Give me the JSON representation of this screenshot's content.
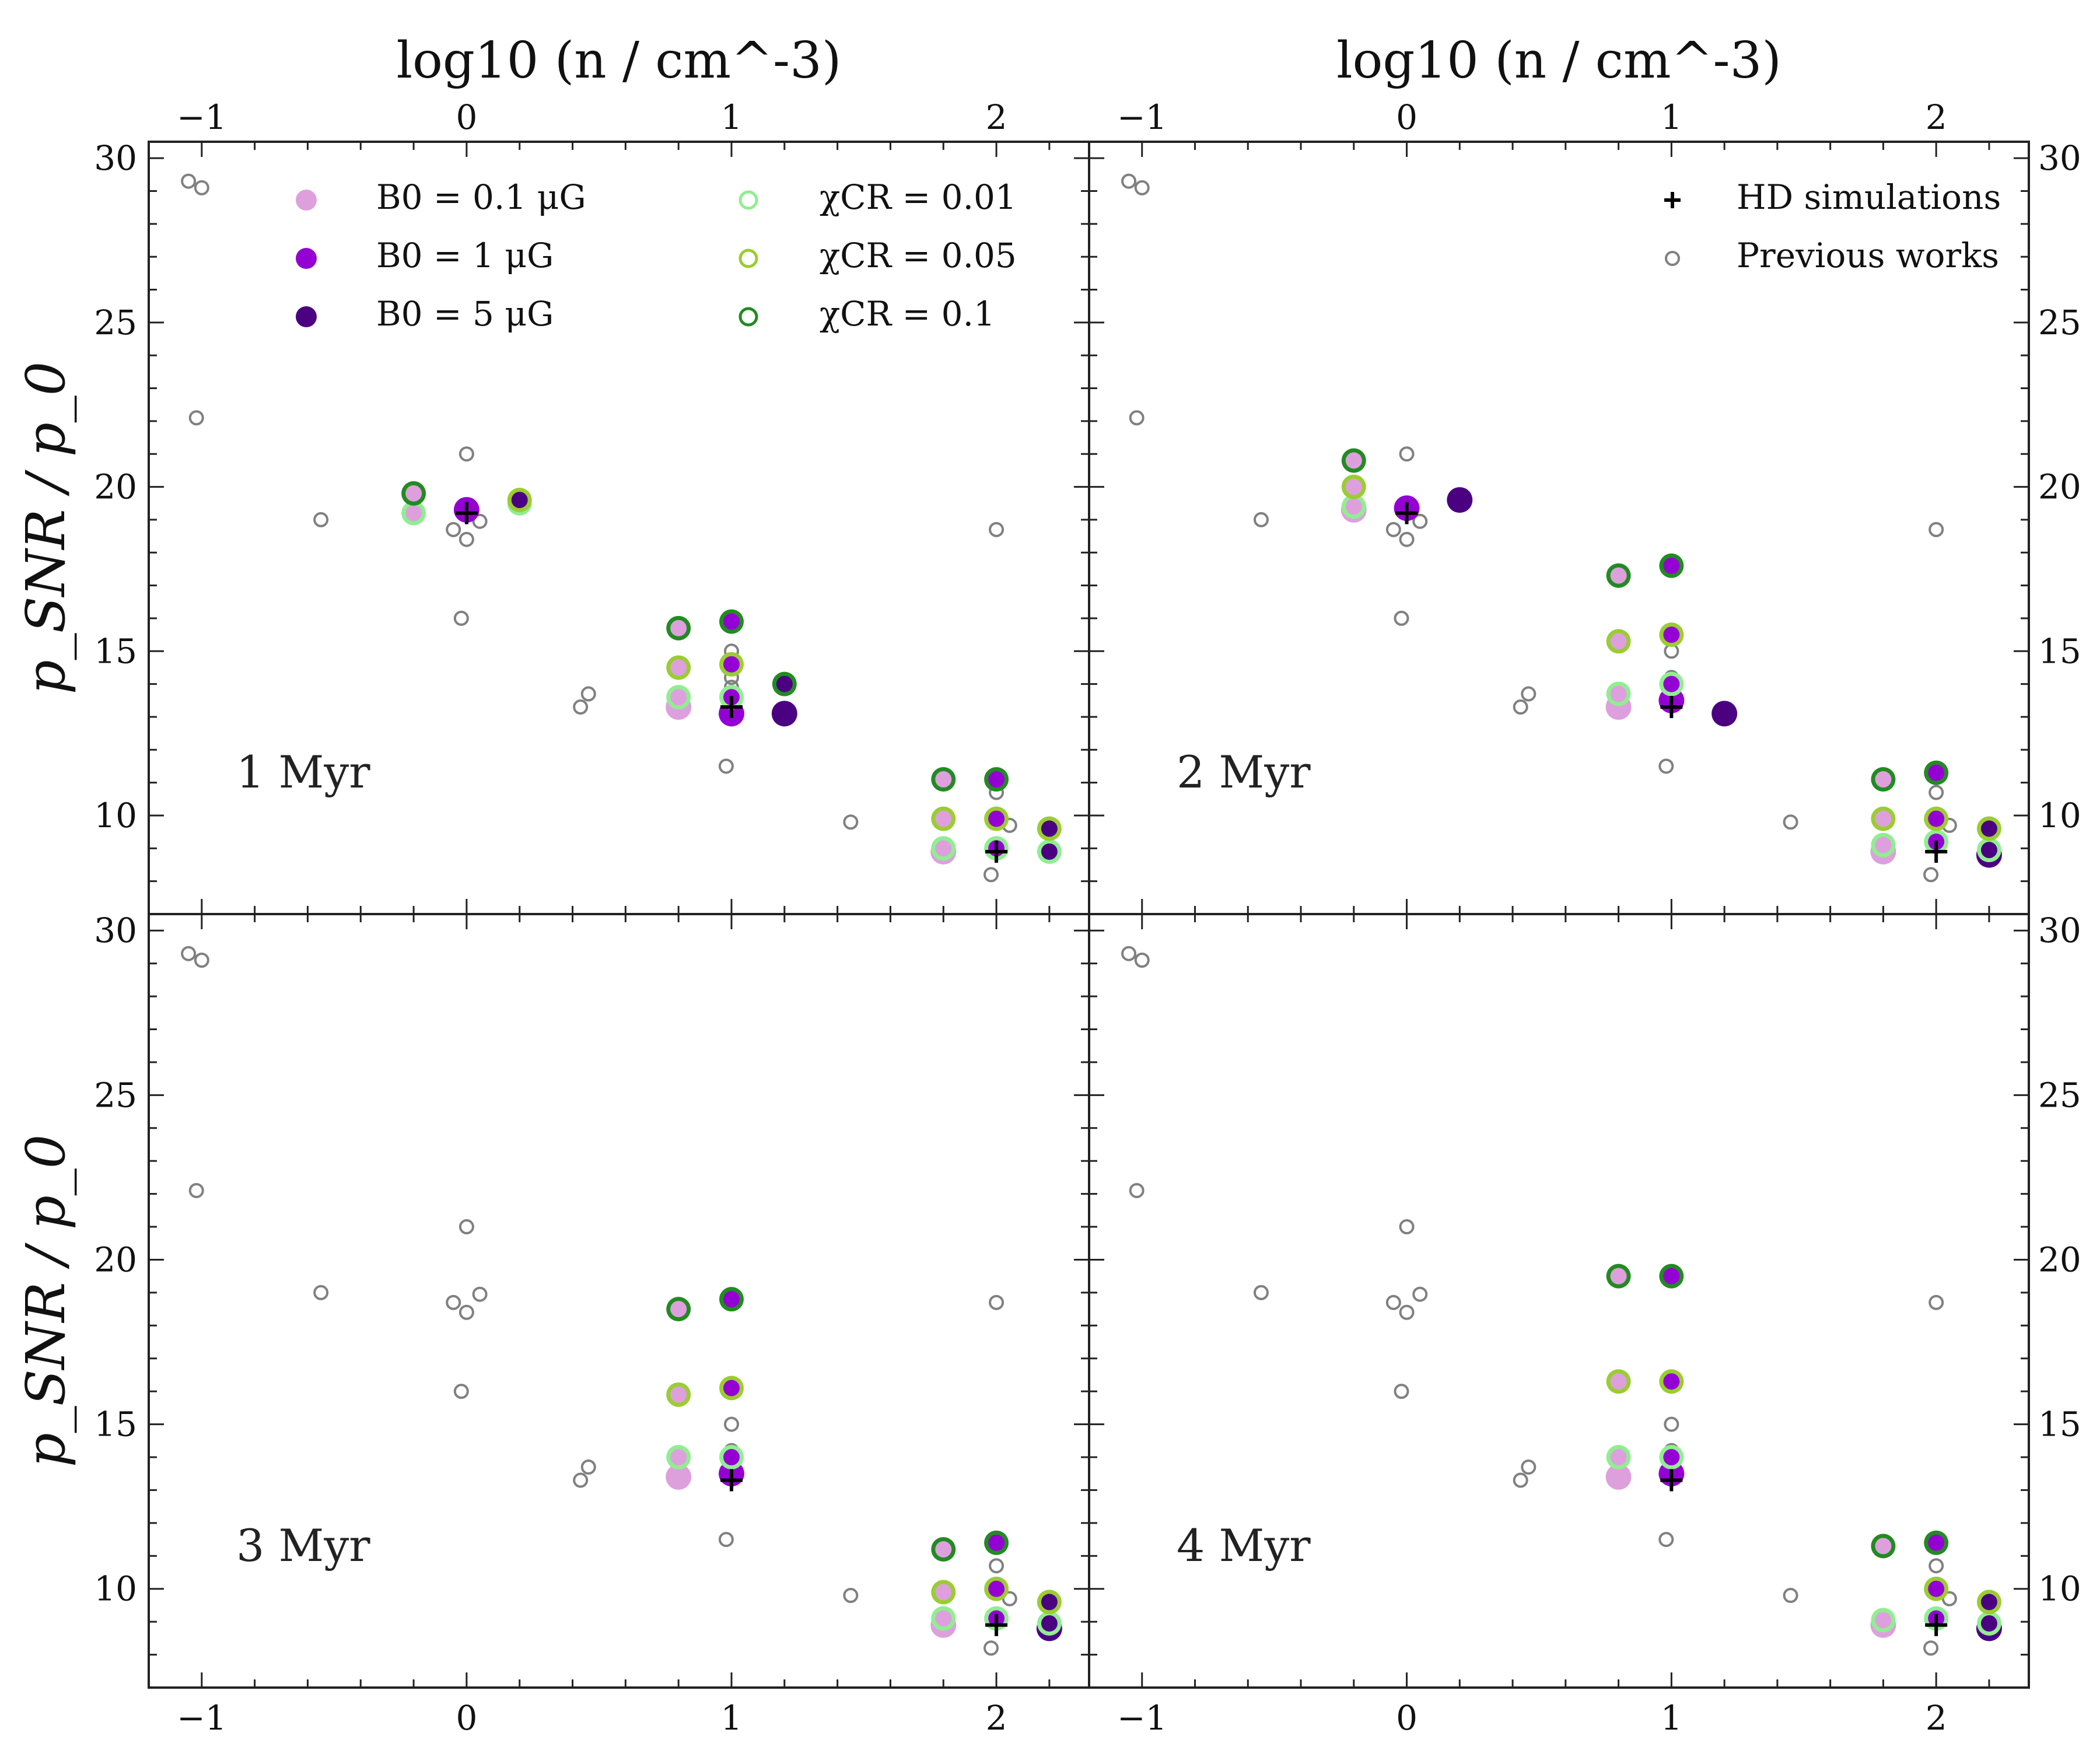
{
  "chart_data": {
    "type": "scatter",
    "layout": "2x2 grid of panels sharing axes",
    "top_axis_label": "log10 (n / cm^-3)",
    "y_axis_label": "p_SNR / p_0",
    "xlim": [
      -1.2,
      2.35
    ],
    "ylim": [
      7,
      30.5
    ],
    "x_ticks": [
      -1,
      0,
      1,
      2
    ],
    "x_tick_labels": [
      "−1",
      "0",
      "1",
      "2"
    ],
    "y_ticks": [
      10,
      15,
      20,
      25,
      30
    ],
    "y_tick_labels": [
      "10",
      "15",
      "20",
      "25",
      "30"
    ],
    "legend": {
      "magnetic_field": [
        {
          "label": "B0 = 0.1 μG",
          "color": "#dda0dd"
        },
        {
          "label": "B0 = 1 μG",
          "color": "#9400d3"
        },
        {
          "label": "B0 = 5 μG",
          "color": "#4b0082"
        }
      ],
      "cosmic_ray": [
        {
          "label": "χCR = 0.01",
          "color": "#90ee90"
        },
        {
          "label": "χCR = 0.05",
          "color": "#9acd32"
        },
        {
          "label": "χCR = 0.1",
          "color": "#228b22"
        }
      ],
      "other": [
        {
          "label": "HD simulations",
          "marker": "plus",
          "color": "#000000"
        },
        {
          "label": "Previous works",
          "marker": "open-circle",
          "color": "#808080"
        }
      ]
    },
    "previous_works": [
      {
        "x": -1.05,
        "y": 29.3
      },
      {
        "x": -1.0,
        "y": 29.1
      },
      {
        "x": -1.02,
        "y": 22.1
      },
      {
        "x": -0.55,
        "y": 19.0
      },
      {
        "x": 0.0,
        "y": 21.0
      },
      {
        "x": -0.05,
        "y": 18.7
      },
      {
        "x": 0.0,
        "y": 18.4
      },
      {
        "x": 0.05,
        "y": 18.95
      },
      {
        "x": -0.02,
        "y": 16.0
      },
      {
        "x": 0.43,
        "y": 13.3
      },
      {
        "x": 0.46,
        "y": 13.7
      },
      {
        "x": 1.0,
        "y": 15.0
      },
      {
        "x": 1.0,
        "y": 14.2
      },
      {
        "x": 1.0,
        "y": 13.9
      },
      {
        "x": 0.98,
        "y": 11.5
      },
      {
        "x": 1.45,
        "y": 9.8
      },
      {
        "x": 2.0,
        "y": 18.7
      },
      {
        "x": 2.0,
        "y": 10.7
      },
      {
        "x": 2.05,
        "y": 9.7
      },
      {
        "x": 1.98,
        "y": 8.2
      }
    ],
    "panels": [
      {
        "label": "1 Myr",
        "mhd_points": [
          {
            "x": 0.0,
            "y": 19.3,
            "fill": "#9400d3",
            "edge": null,
            "size": "large"
          },
          {
            "x": -0.2,
            "y": 19.2,
            "fill": "#dda0dd",
            "edge": "#90ee90",
            "size": "ring"
          },
          {
            "x": -0.2,
            "y": 19.8,
            "fill": "#dda0dd",
            "edge": "#228b22",
            "size": "ring"
          },
          {
            "x": 0.2,
            "y": 19.5,
            "fill": "#4b0082",
            "edge": "#90ee90",
            "size": "ring"
          },
          {
            "x": 0.2,
            "y": 19.6,
            "fill": "#4b0082",
            "edge": "#9acd32",
            "size": "ring"
          },
          {
            "x": 0.8,
            "y": 13.3,
            "fill": "#dda0dd",
            "edge": null,
            "size": "large"
          },
          {
            "x": 0.8,
            "y": 13.6,
            "fill": "#dda0dd",
            "edge": "#90ee90",
            "size": "ring"
          },
          {
            "x": 0.8,
            "y": 14.5,
            "fill": "#dda0dd",
            "edge": "#9acd32",
            "size": "ring"
          },
          {
            "x": 0.8,
            "y": 15.7,
            "fill": "#dda0dd",
            "edge": "#228b22",
            "size": "ring"
          },
          {
            "x": 1.0,
            "y": 13.1,
            "fill": "#9400d3",
            "edge": null,
            "size": "large"
          },
          {
            "x": 1.0,
            "y": 13.6,
            "fill": "#9400d3",
            "edge": "#90ee90",
            "size": "ring"
          },
          {
            "x": 1.0,
            "y": 14.6,
            "fill": "#9400d3",
            "edge": "#9acd32",
            "size": "ring"
          },
          {
            "x": 1.0,
            "y": 15.9,
            "fill": "#9400d3",
            "edge": "#228b22",
            "size": "ring"
          },
          {
            "x": 1.2,
            "y": 13.1,
            "fill": "#4b0082",
            "edge": null,
            "size": "large"
          },
          {
            "x": 1.2,
            "y": 14.0,
            "fill": "#4b0082",
            "edge": "#228b22",
            "size": "ring"
          },
          {
            "x": 1.8,
            "y": 8.9,
            "fill": "#dda0dd",
            "edge": null,
            "size": "large"
          },
          {
            "x": 1.8,
            "y": 9.0,
            "fill": "#dda0dd",
            "edge": "#90ee90",
            "size": "ring"
          },
          {
            "x": 1.8,
            "y": 9.9,
            "fill": "#dda0dd",
            "edge": "#9acd32",
            "size": "ring"
          },
          {
            "x": 1.8,
            "y": 11.1,
            "fill": "#dda0dd",
            "edge": "#228b22",
            "size": "ring"
          },
          {
            "x": 2.0,
            "y": 9.0,
            "fill": "#9400d3",
            "edge": "#90ee90",
            "size": "ring"
          },
          {
            "x": 2.0,
            "y": 9.9,
            "fill": "#9400d3",
            "edge": "#9acd32",
            "size": "ring"
          },
          {
            "x": 2.0,
            "y": 11.1,
            "fill": "#9400d3",
            "edge": "#228b22",
            "size": "ring"
          },
          {
            "x": 2.2,
            "y": 8.9,
            "fill": "#4b0082",
            "edge": "#90ee90",
            "size": "ring"
          },
          {
            "x": 2.2,
            "y": 9.6,
            "fill": "#4b0082",
            "edge": "#9acd32",
            "size": "ring"
          }
        ],
        "hd_points": [
          {
            "x": 0.0,
            "y": 19.2
          },
          {
            "x": 1.0,
            "y": 13.3
          },
          {
            "x": 2.0,
            "y": 8.9
          }
        ],
        "legend_block": "magnetic_and_cr"
      },
      {
        "label": "2 Myr",
        "mhd_points": [
          {
            "x": 0.0,
            "y": 19.35,
            "fill": "#9400d3",
            "edge": null,
            "size": "large"
          },
          {
            "x": 0.2,
            "y": 19.6,
            "fill": "#4b0082",
            "edge": null,
            "size": "large"
          },
          {
            "x": -0.2,
            "y": 19.3,
            "fill": "#dda0dd",
            "edge": null,
            "size": "large"
          },
          {
            "x": -0.2,
            "y": 19.4,
            "fill": "#dda0dd",
            "edge": "#90ee90",
            "size": "ring"
          },
          {
            "x": -0.2,
            "y": 20.0,
            "fill": "#dda0dd",
            "edge": "#9acd32",
            "size": "ring"
          },
          {
            "x": -0.2,
            "y": 20.8,
            "fill": "#dda0dd",
            "edge": "#228b22",
            "size": "ring"
          },
          {
            "x": 0.8,
            "y": 13.3,
            "fill": "#dda0dd",
            "edge": null,
            "size": "large"
          },
          {
            "x": 0.8,
            "y": 13.7,
            "fill": "#dda0dd",
            "edge": "#90ee90",
            "size": "ring"
          },
          {
            "x": 0.8,
            "y": 15.3,
            "fill": "#dda0dd",
            "edge": "#9acd32",
            "size": "ring"
          },
          {
            "x": 0.8,
            "y": 17.3,
            "fill": "#dda0dd",
            "edge": "#228b22",
            "size": "ring"
          },
          {
            "x": 1.0,
            "y": 13.5,
            "fill": "#9400d3",
            "edge": null,
            "size": "large"
          },
          {
            "x": 1.0,
            "y": 14.0,
            "fill": "#9400d3",
            "edge": "#90ee90",
            "size": "ring"
          },
          {
            "x": 1.0,
            "y": 15.5,
            "fill": "#9400d3",
            "edge": "#9acd32",
            "size": "ring"
          },
          {
            "x": 1.0,
            "y": 17.6,
            "fill": "#9400d3",
            "edge": "#228b22",
            "size": "ring"
          },
          {
            "x": 1.2,
            "y": 13.1,
            "fill": "#4b0082",
            "edge": null,
            "size": "large"
          },
          {
            "x": 1.8,
            "y": 8.9,
            "fill": "#dda0dd",
            "edge": null,
            "size": "large"
          },
          {
            "x": 1.8,
            "y": 9.1,
            "fill": "#dda0dd",
            "edge": "#90ee90",
            "size": "ring"
          },
          {
            "x": 1.8,
            "y": 9.9,
            "fill": "#dda0dd",
            "edge": "#9acd32",
            "size": "ring"
          },
          {
            "x": 1.8,
            "y": 11.1,
            "fill": "#dda0dd",
            "edge": "#228b22",
            "size": "ring"
          },
          {
            "x": 2.0,
            "y": 9.2,
            "fill": "#9400d3",
            "edge": "#90ee90",
            "size": "ring"
          },
          {
            "x": 2.0,
            "y": 9.9,
            "fill": "#9400d3",
            "edge": "#9acd32",
            "size": "ring"
          },
          {
            "x": 2.0,
            "y": 11.3,
            "fill": "#9400d3",
            "edge": "#228b22",
            "size": "ring"
          },
          {
            "x": 2.2,
            "y": 8.8,
            "fill": "#4b0082",
            "edge": null,
            "size": "large"
          },
          {
            "x": 2.2,
            "y": 8.95,
            "fill": "#4b0082",
            "edge": "#90ee90",
            "size": "ring"
          },
          {
            "x": 2.2,
            "y": 9.6,
            "fill": "#4b0082",
            "edge": "#9acd32",
            "size": "ring"
          }
        ],
        "hd_points": [
          {
            "x": 0.0,
            "y": 19.2
          },
          {
            "x": 1.0,
            "y": 13.3
          },
          {
            "x": 2.0,
            "y": 8.9
          }
        ],
        "legend_block": "hd_and_previous"
      },
      {
        "label": "3 Myr",
        "mhd_points": [
          {
            "x": 0.8,
            "y": 13.4,
            "fill": "#dda0dd",
            "edge": null,
            "size": "large"
          },
          {
            "x": 0.8,
            "y": 14.0,
            "fill": "#dda0dd",
            "edge": "#90ee90",
            "size": "ring"
          },
          {
            "x": 0.8,
            "y": 15.9,
            "fill": "#dda0dd",
            "edge": "#9acd32",
            "size": "ring"
          },
          {
            "x": 0.8,
            "y": 18.5,
            "fill": "#dda0dd",
            "edge": "#228b22",
            "size": "ring"
          },
          {
            "x": 1.0,
            "y": 13.5,
            "fill": "#9400d3",
            "edge": null,
            "size": "large"
          },
          {
            "x": 1.0,
            "y": 14.0,
            "fill": "#9400d3",
            "edge": "#90ee90",
            "size": "ring"
          },
          {
            "x": 1.0,
            "y": 16.1,
            "fill": "#9400d3",
            "edge": "#9acd32",
            "size": "ring"
          },
          {
            "x": 1.0,
            "y": 18.8,
            "fill": "#9400d3",
            "edge": "#228b22",
            "size": "ring"
          },
          {
            "x": 1.8,
            "y": 8.9,
            "fill": "#dda0dd",
            "edge": null,
            "size": "large"
          },
          {
            "x": 1.8,
            "y": 9.1,
            "fill": "#dda0dd",
            "edge": "#90ee90",
            "size": "ring"
          },
          {
            "x": 1.8,
            "y": 9.9,
            "fill": "#dda0dd",
            "edge": "#9acd32",
            "size": "ring"
          },
          {
            "x": 1.8,
            "y": 11.2,
            "fill": "#dda0dd",
            "edge": "#228b22",
            "size": "ring"
          },
          {
            "x": 2.0,
            "y": 9.1,
            "fill": "#9400d3",
            "edge": "#90ee90",
            "size": "ring"
          },
          {
            "x": 2.0,
            "y": 10.0,
            "fill": "#9400d3",
            "edge": "#9acd32",
            "size": "ring"
          },
          {
            "x": 2.0,
            "y": 11.4,
            "fill": "#9400d3",
            "edge": "#228b22",
            "size": "ring"
          },
          {
            "x": 2.2,
            "y": 8.8,
            "fill": "#4b0082",
            "edge": null,
            "size": "large"
          },
          {
            "x": 2.2,
            "y": 8.95,
            "fill": "#4b0082",
            "edge": "#90ee90",
            "size": "ring"
          },
          {
            "x": 2.2,
            "y": 9.6,
            "fill": "#4b0082",
            "edge": "#9acd32",
            "size": "ring"
          }
        ],
        "hd_points": [
          {
            "x": 1.0,
            "y": 13.3
          },
          {
            "x": 2.0,
            "y": 8.9
          }
        ],
        "legend_block": null
      },
      {
        "label": "4 Myr",
        "mhd_points": [
          {
            "x": 0.8,
            "y": 13.4,
            "fill": "#dda0dd",
            "edge": null,
            "size": "large"
          },
          {
            "x": 0.8,
            "y": 14.0,
            "fill": "#dda0dd",
            "edge": "#90ee90",
            "size": "ring"
          },
          {
            "x": 0.8,
            "y": 16.3,
            "fill": "#dda0dd",
            "edge": "#9acd32",
            "size": "ring"
          },
          {
            "x": 0.8,
            "y": 19.5,
            "fill": "#dda0dd",
            "edge": "#228b22",
            "size": "ring"
          },
          {
            "x": 1.0,
            "y": 13.5,
            "fill": "#9400d3",
            "edge": null,
            "size": "large"
          },
          {
            "x": 1.0,
            "y": 14.0,
            "fill": "#9400d3",
            "edge": "#90ee90",
            "size": "ring"
          },
          {
            "x": 1.0,
            "y": 16.3,
            "fill": "#9400d3",
            "edge": "#9acd32",
            "size": "ring"
          },
          {
            "x": 1.0,
            "y": 19.5,
            "fill": "#9400d3",
            "edge": "#228b22",
            "size": "ring"
          },
          {
            "x": 1.8,
            "y": 8.9,
            "fill": "#dda0dd",
            "edge": null,
            "size": "large"
          },
          {
            "x": 1.8,
            "y": 9.05,
            "fill": "#dda0dd",
            "edge": "#90ee90",
            "size": "ring"
          },
          {
            "x": 1.8,
            "y": 11.3,
            "fill": "#dda0dd",
            "edge": "#228b22",
            "size": "ring"
          },
          {
            "x": 2.0,
            "y": 9.1,
            "fill": "#9400d3",
            "edge": "#90ee90",
            "size": "ring"
          },
          {
            "x": 2.0,
            "y": 10.0,
            "fill": "#9400d3",
            "edge": "#9acd32",
            "size": "ring"
          },
          {
            "x": 2.0,
            "y": 11.4,
            "fill": "#9400d3",
            "edge": "#228b22",
            "size": "ring"
          },
          {
            "x": 2.2,
            "y": 8.8,
            "fill": "#4b0082",
            "edge": null,
            "size": "large"
          },
          {
            "x": 2.2,
            "y": 8.95,
            "fill": "#4b0082",
            "edge": "#90ee90",
            "size": "ring"
          },
          {
            "x": 2.2,
            "y": 9.6,
            "fill": "#4b0082",
            "edge": "#9acd32",
            "size": "ring"
          }
        ],
        "hd_points": [
          {
            "x": 1.0,
            "y": 13.3
          },
          {
            "x": 2.0,
            "y": 8.9
          }
        ],
        "legend_block": null
      }
    ]
  }
}
